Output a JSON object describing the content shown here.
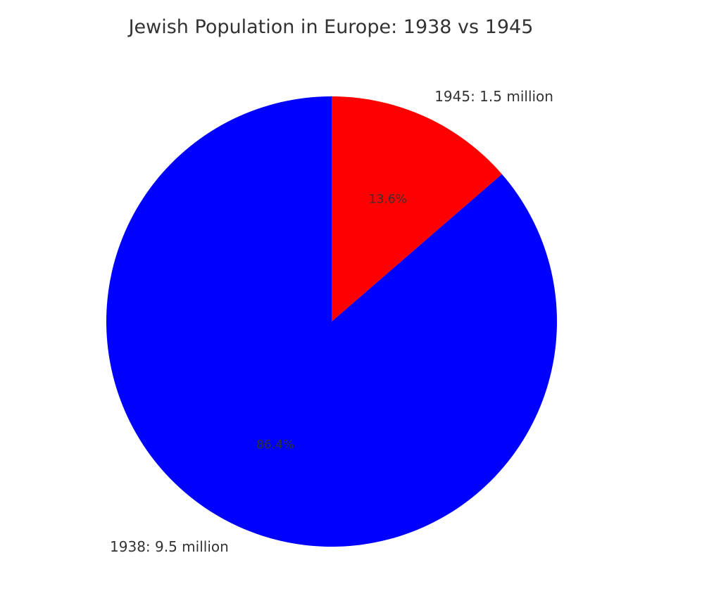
{
  "chart_data": {
    "type": "pie",
    "title": "Jewish Population in Europe: 1938 vs 1945",
    "slices": [
      {
        "label": "1938: 9.5 million",
        "value": 9.5,
        "percent_label": "86.4%",
        "color": "#0000ff"
      },
      {
        "label": "1945: 1.5 million",
        "value": 1.5,
        "percent_label": "13.6%",
        "color": "#ff0000"
      }
    ]
  }
}
